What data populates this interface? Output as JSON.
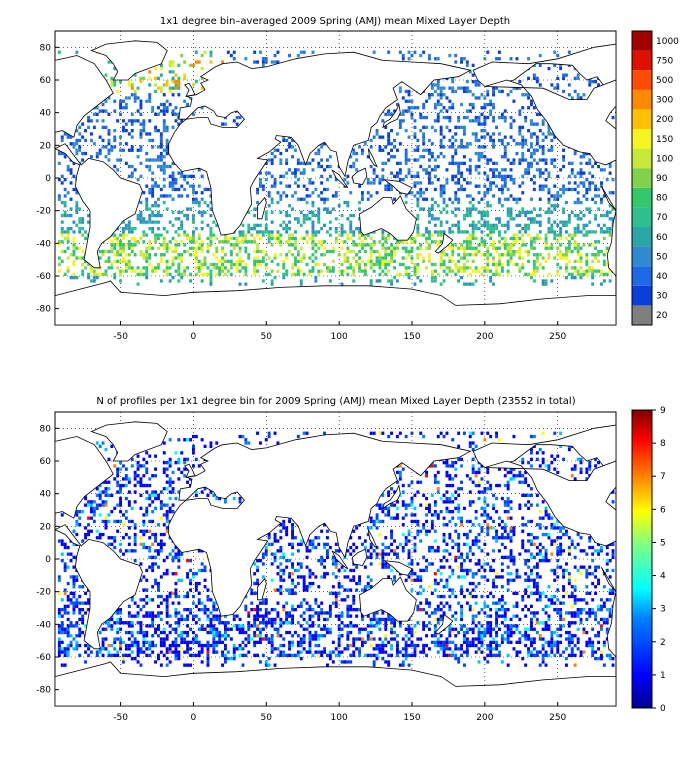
{
  "figure": {
    "panels": [
      {
        "title": "1x1 degree bin–averaged 2009 Spring (AMJ) mean Mixed Layer Depth",
        "colorbar": {
          "kind": "discrete",
          "levels": [
            "20",
            "30",
            "40",
            "50",
            "60",
            "70",
            "80",
            "90",
            "100",
            "150",
            "200",
            "300",
            "500",
            "750",
            "1000"
          ],
          "colors": [
            "#7f7f7f",
            "#0a3fd8",
            "#1f68e8",
            "#2f8ad0",
            "#2aa6a6",
            "#2fbf8f",
            "#34c86a",
            "#7fd24a",
            "#c8e83a",
            "#f5f520",
            "#ffc000",
            "#ff8a00",
            "#ff4a00",
            "#e01000",
            "#a50000"
          ]
        }
      },
      {
        "title": "N of profiles per 1x1 degree bin for 2009 Spring (AMJ) mean Mixed Layer Depth  (23552 in total)",
        "colorbar": {
          "kind": "continuous",
          "ticks": [
            "0",
            "1",
            "2",
            "3",
            "4",
            "5",
            "6",
            "7",
            "8",
            "9"
          ],
          "colors": [
            "#00008f",
            "#0000ff",
            "#0080ff",
            "#00ffff",
            "#80ff80",
            "#ffff00",
            "#ff8000",
            "#ff0000",
            "#800000"
          ]
        }
      }
    ]
  },
  "chart_data": [
    {
      "type": "heatmap",
      "title": "1x1 degree bin–averaged 2009 Spring (AMJ) mean Mixed Layer Depth",
      "xlabel": "",
      "ylabel": "",
      "xlim": [
        -95,
        290
      ],
      "ylim": [
        -90,
        90
      ],
      "x_ticks": [
        "-50",
        "0",
        "50",
        "100",
        "150",
        "200",
        "250"
      ],
      "y_ticks": [
        "80",
        "60",
        "40",
        "20",
        "0",
        "-20",
        "-40",
        "-60",
        "-80"
      ],
      "grid": true,
      "colorbar_levels": [
        "20",
        "30",
        "40",
        "50",
        "60",
        "70",
        "80",
        "90",
        "100",
        "150",
        "200",
        "300",
        "500",
        "750",
        "1000"
      ]
    },
    {
      "type": "heatmap",
      "title": "N of profiles per 1x1 degree bin for 2009 Spring (AMJ) mean Mixed Layer Depth  (23552 in total)",
      "xlabel": "",
      "ylabel": "",
      "xlim": [
        -95,
        290
      ],
      "ylim": [
        -90,
        90
      ],
      "x_ticks": [
        "-50",
        "0",
        "50",
        "100",
        "150",
        "200",
        "250"
      ],
      "y_ticks": [
        "80",
        "60",
        "40",
        "20",
        "0",
        "-20",
        "-40",
        "-60",
        "-80"
      ],
      "grid": true,
      "colorbar_range": [
        0,
        9
      ],
      "colorbar_ticks": [
        "0",
        "1",
        "2",
        "3",
        "4",
        "5",
        "6",
        "7",
        "8",
        "9"
      ]
    }
  ]
}
